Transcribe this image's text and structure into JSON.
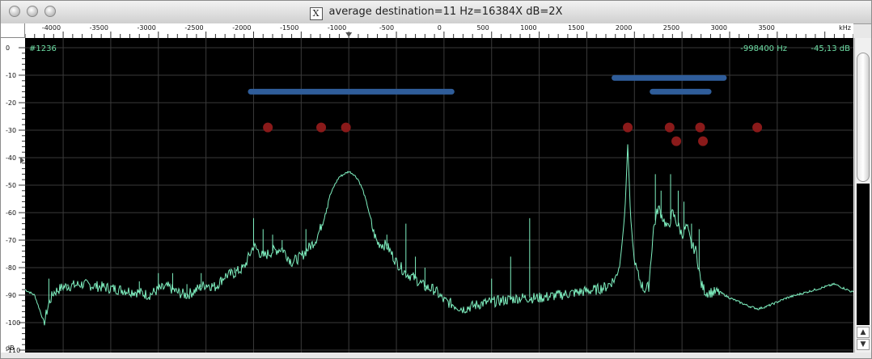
{
  "window": {
    "title": "average   destination=11 Hz=16384X dB=2X",
    "x_icon": "X"
  },
  "readout": {
    "counter": "#1236",
    "frequency": "-998400 Hz",
    "level": "-45,13 dB"
  },
  "chart_data": {
    "type": "line",
    "xunit": "kHz",
    "yunit": "dB",
    "xlim": [
      -4400,
      4300
    ],
    "ylim": [
      -110,
      0
    ],
    "x_ticks": [
      -4000,
      -3500,
      -3000,
      -2500,
      -2000,
      -1500,
      -1000,
      -500,
      0,
      500,
      1000,
      1500,
      2000,
      2500,
      3000,
      3500
    ],
    "y_ticks": [
      0,
      -10,
      -20,
      -30,
      -40,
      -50,
      -60,
      -70,
      -80,
      -90,
      -100,
      -110
    ],
    "marker_x": -1000,
    "colors": {
      "trace": "#7ff0c0",
      "band": "#2f5d9a",
      "dot": "#8a1a1a",
      "grid": "#3a3a3a",
      "readout": "#6ee0a6"
    },
    "bands": [
      {
        "x1": -2030,
        "x2": 80,
        "y": -16
      },
      {
        "x1": 1790,
        "x2": 2940,
        "y": -11
      },
      {
        "x1": 2190,
        "x2": 2780,
        "y": -16
      }
    ],
    "dots": [
      {
        "x": -1850,
        "y": -29
      },
      {
        "x": -1290,
        "y": -29
      },
      {
        "x": -1030,
        "y": -29
      },
      {
        "x": 1930,
        "y": -29
      },
      {
        "x": 2370,
        "y": -29
      },
      {
        "x": 2690,
        "y": -29
      },
      {
        "x": 3290,
        "y": -29
      },
      {
        "x": 2440,
        "y": -34
      },
      {
        "x": 2720,
        "y": -34
      }
    ],
    "trace_anchors": [
      [
        -4400,
        -88
      ],
      [
        -4300,
        -90
      ],
      [
        -4200,
        -100
      ],
      [
        -4150,
        -93
      ],
      [
        -4100,
        -89
      ],
      [
        -4000,
        -87
      ],
      [
        -3800,
        -86
      ],
      [
        -3600,
        -87
      ],
      [
        -3400,
        -88
      ],
      [
        -3200,
        -89
      ],
      [
        -3100,
        -90
      ],
      [
        -3000,
        -88
      ],
      [
        -2900,
        -87
      ],
      [
        -2800,
        -89
      ],
      [
        -2700,
        -90
      ],
      [
        -2600,
        -88
      ],
      [
        -2500,
        -86
      ],
      [
        -2400,
        -87
      ],
      [
        -2300,
        -83
      ],
      [
        -2200,
        -82
      ],
      [
        -2100,
        -80
      ],
      [
        -2000,
        -72
      ],
      [
        -1900,
        -76
      ],
      [
        -1800,
        -74
      ],
      [
        -1700,
        -73
      ],
      [
        -1600,
        -78
      ],
      [
        -1500,
        -76
      ],
      [
        -1400,
        -72
      ],
      [
        -1350,
        -70
      ],
      [
        -1300,
        -66
      ],
      [
        -1250,
        -60
      ],
      [
        -1200,
        -54
      ],
      [
        -1150,
        -50
      ],
      [
        -1100,
        -47
      ],
      [
        -1050,
        -46
      ],
      [
        -1000,
        -45
      ],
      [
        -950,
        -46
      ],
      [
        -900,
        -48
      ],
      [
        -850,
        -52
      ],
      [
        -800,
        -58
      ],
      [
        -750,
        -66
      ],
      [
        -700,
        -71
      ],
      [
        -600,
        -72
      ],
      [
        -500,
        -78
      ],
      [
        -400,
        -82
      ],
      [
        -300,
        -84
      ],
      [
        -200,
        -87
      ],
      [
        -100,
        -88
      ],
      [
        0,
        -92
      ],
      [
        200,
        -95
      ],
      [
        400,
        -93
      ],
      [
        600,
        -92
      ],
      [
        800,
        -91
      ],
      [
        1000,
        -91
      ],
      [
        1200,
        -90
      ],
      [
        1400,
        -89
      ],
      [
        1600,
        -88
      ],
      [
        1700,
        -87
      ],
      [
        1800,
        -84
      ],
      [
        1850,
        -78
      ],
      [
        1900,
        -60
      ],
      [
        1930,
        -35
      ],
      [
        1960,
        -62
      ],
      [
        2000,
        -78
      ],
      [
        2050,
        -84
      ],
      [
        2100,
        -88
      ],
      [
        2150,
        -87
      ],
      [
        2200,
        -66
      ],
      [
        2250,
        -58
      ],
      [
        2300,
        -62
      ],
      [
        2350,
        -66
      ],
      [
        2400,
        -60
      ],
      [
        2450,
        -64
      ],
      [
        2500,
        -68
      ],
      [
        2550,
        -65
      ],
      [
        2600,
        -72
      ],
      [
        2650,
        -74
      ],
      [
        2700,
        -86
      ],
      [
        2750,
        -89
      ],
      [
        2900,
        -89
      ],
      [
        3000,
        -91
      ],
      [
        3200,
        -94
      ],
      [
        3300,
        -95
      ],
      [
        3400,
        -94
      ],
      [
        3600,
        -91
      ],
      [
        3800,
        -89
      ],
      [
        4000,
        -87
      ],
      [
        4100,
        -86
      ],
      [
        4300,
        -89
      ]
    ],
    "spikes": [
      [
        -4150,
        -84
      ],
      [
        -3950,
        -86
      ],
      [
        -3200,
        -85
      ],
      [
        -3000,
        -82
      ],
      [
        -2850,
        -82
      ],
      [
        -2700,
        -86
      ],
      [
        -2550,
        -82
      ],
      [
        -2200,
        -80
      ],
      [
        -2000,
        -62
      ],
      [
        -1900,
        -66
      ],
      [
        -1800,
        -68
      ],
      [
        -1700,
        -70
      ],
      [
        -1450,
        -66
      ],
      [
        -1300,
        -65
      ],
      [
        -600,
        -68
      ],
      [
        -400,
        -64
      ],
      [
        -300,
        -76
      ],
      [
        -200,
        -80
      ],
      [
        500,
        -84
      ],
      [
        700,
        -76
      ],
      [
        900,
        -62
      ],
      [
        2220,
        -46
      ],
      [
        2280,
        -52
      ],
      [
        2380,
        -46
      ],
      [
        2460,
        -52
      ],
      [
        2520,
        -56
      ],
      [
        2600,
        -64
      ],
      [
        2680,
        -66
      ]
    ]
  }
}
